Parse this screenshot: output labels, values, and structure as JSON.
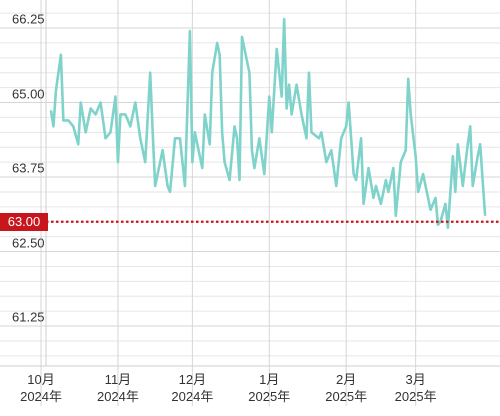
{
  "chart_data": {
    "type": "line",
    "x": [
      4,
      5,
      6,
      8,
      9,
      11,
      13,
      15,
      16,
      18,
      20,
      22,
      24,
      26,
      28,
      30,
      31,
      32,
      34,
      36,
      38,
      40,
      42,
      44,
      45,
      46,
      47,
      49,
      51,
      52,
      54,
      56,
      58,
      60,
      61,
      62,
      63,
      65,
      66,
      68,
      69,
      71,
      72,
      73,
      74,
      76,
      78,
      79,
      80,
      81,
      82,
      84,
      85,
      86,
      88,
      90,
      92,
      93,
      95,
      97,
      98,
      99,
      100,
      101,
      103,
      105,
      107,
      108,
      109,
      112,
      113,
      115,
      117,
      119,
      121,
      123,
      124,
      126,
      127,
      129,
      130,
      132,
      134,
      135,
      137,
      139,
      140,
      142,
      143,
      145,
      147,
      148,
      149,
      151,
      152,
      154,
      156,
      157,
      159,
      160,
      161,
      163,
      164,
      166,
      167,
      168,
      170,
      172,
      173,
      174,
      176,
      177,
      178,
      179
    ],
    "series": [
      {
        "color": "#7fd3cb",
        "values": [
          64.87,
          64.6,
          65.2,
          65.8,
          64.7,
          64.7,
          64.6,
          64.3,
          65.0,
          64.5,
          64.9,
          64.8,
          65.0,
          64.4,
          64.5,
          65.1,
          64.0,
          64.8,
          64.8,
          64.6,
          65.0,
          64.4,
          64.0,
          65.5,
          64.5,
          63.6,
          63.8,
          64.2,
          63.6,
          63.5,
          64.4,
          64.4,
          63.6,
          66.2,
          64.0,
          64.5,
          64.3,
          63.9,
          64.8,
          64.3,
          65.5,
          66.0,
          65.8,
          64.5,
          64.0,
          63.7,
          64.6,
          64.4,
          63.7,
          66.1,
          65.9,
          65.5,
          64.2,
          63.9,
          64.4,
          63.8,
          65.1,
          64.5,
          65.9,
          65.1,
          66.4,
          64.9,
          65.3,
          64.8,
          65.3,
          64.8,
          64.4,
          65.5,
          64.5,
          64.4,
          64.5,
          64.0,
          64.2,
          63.6,
          64.4,
          64.6,
          65.0,
          63.8,
          63.7,
          64.4,
          63.3,
          63.9,
          63.4,
          63.6,
          63.3,
          63.7,
          63.5,
          63.9,
          63.1,
          64.0,
          64.2,
          65.4,
          64.8,
          64.1,
          63.5,
          63.8,
          63.4,
          63.2,
          63.4,
          62.95,
          63.0,
          63.3,
          62.9,
          64.1,
          63.5,
          64.3,
          63.6,
          64.3,
          64.6,
          63.6,
          64.1,
          64.3,
          63.7,
          63.1
        ]
      }
    ],
    "xlim": [
      2,
      185
    ],
    "xticks": [
      {
        "value": 0,
        "label": "10月\n2024年"
      },
      {
        "value": 31,
        "label": "11月\n2024年"
      },
      {
        "value": 61,
        "label": "12月\n2024年"
      },
      {
        "value": 92,
        "label": "1月\n2025年"
      },
      {
        "value": 123,
        "label": "2月\n2025年"
      },
      {
        "value": 151,
        "label": "3月\n2025年"
      }
    ],
    "ylim": [
      60.58,
      66.72
    ],
    "yticks": [
      {
        "value": 61.25,
        "label": "61.25"
      },
      {
        "value": 62.5,
        "label": "62.50"
      },
      {
        "value": 63.75,
        "label": "63.75"
      },
      {
        "value": 65,
        "label": "65.00"
      },
      66.25
    ],
    "minor_yticks": [
      60.75,
      61.0,
      61.5,
      61.75,
      62.0,
      62.25,
      62.75,
      63.0,
      63.25,
      63.5,
      64.0,
      64.25,
      64.5,
      64.75,
      65.25,
      65.5,
      65.75,
      66.0,
      66.5
    ],
    "reference_line": {
      "value": 63,
      "label": "63.00",
      "color": "#c8161d"
    },
    "grid": true
  }
}
